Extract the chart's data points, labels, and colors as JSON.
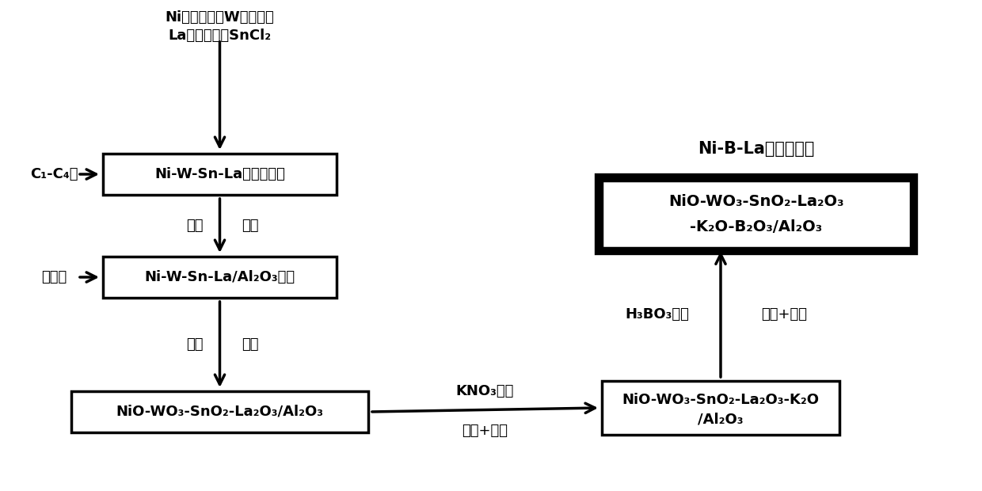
{
  "background": "#ffffff",
  "title_text": "Ni-B-La重整催化剂",
  "top_line1": "Ni可溶性盐、W可溶性盐",
  "top_line2": "La可溶性盐、SnCl₂",
  "box1_text": "Ni-W-Sn-La混合醇溶液",
  "box2_text": "Ni-W-Sn-La/Al₂O₃凝胶",
  "box3_text": "NiO-WO₃-SnO₂-La₂O₃/Al₂O₃",
  "box4_line1": "NiO-WO₃-SnO₂-La₂O₃-K₂O",
  "box4_line2": "/Al₂O₃",
  "box5_line1": "NiO-WO₃-SnO₂-La₂O₃",
  "box5_line2": "-K₂O-B₂O₃/Al₂O₃",
  "left_label1": "C₁-C₄醇",
  "left_label2": "醇铝盐",
  "mid_label1_left": "醋酸",
  "mid_label1_right": "稝酸",
  "mid_label2_left": "干燥",
  "mid_label2_right": "焙烧",
  "kno3_line1": "KNO₃溶液",
  "kno3_line2": "浸渍+焙烧",
  "h3bo3_label": "H₃BO₃溶液",
  "immerse_label": "浸渍+焙烧"
}
